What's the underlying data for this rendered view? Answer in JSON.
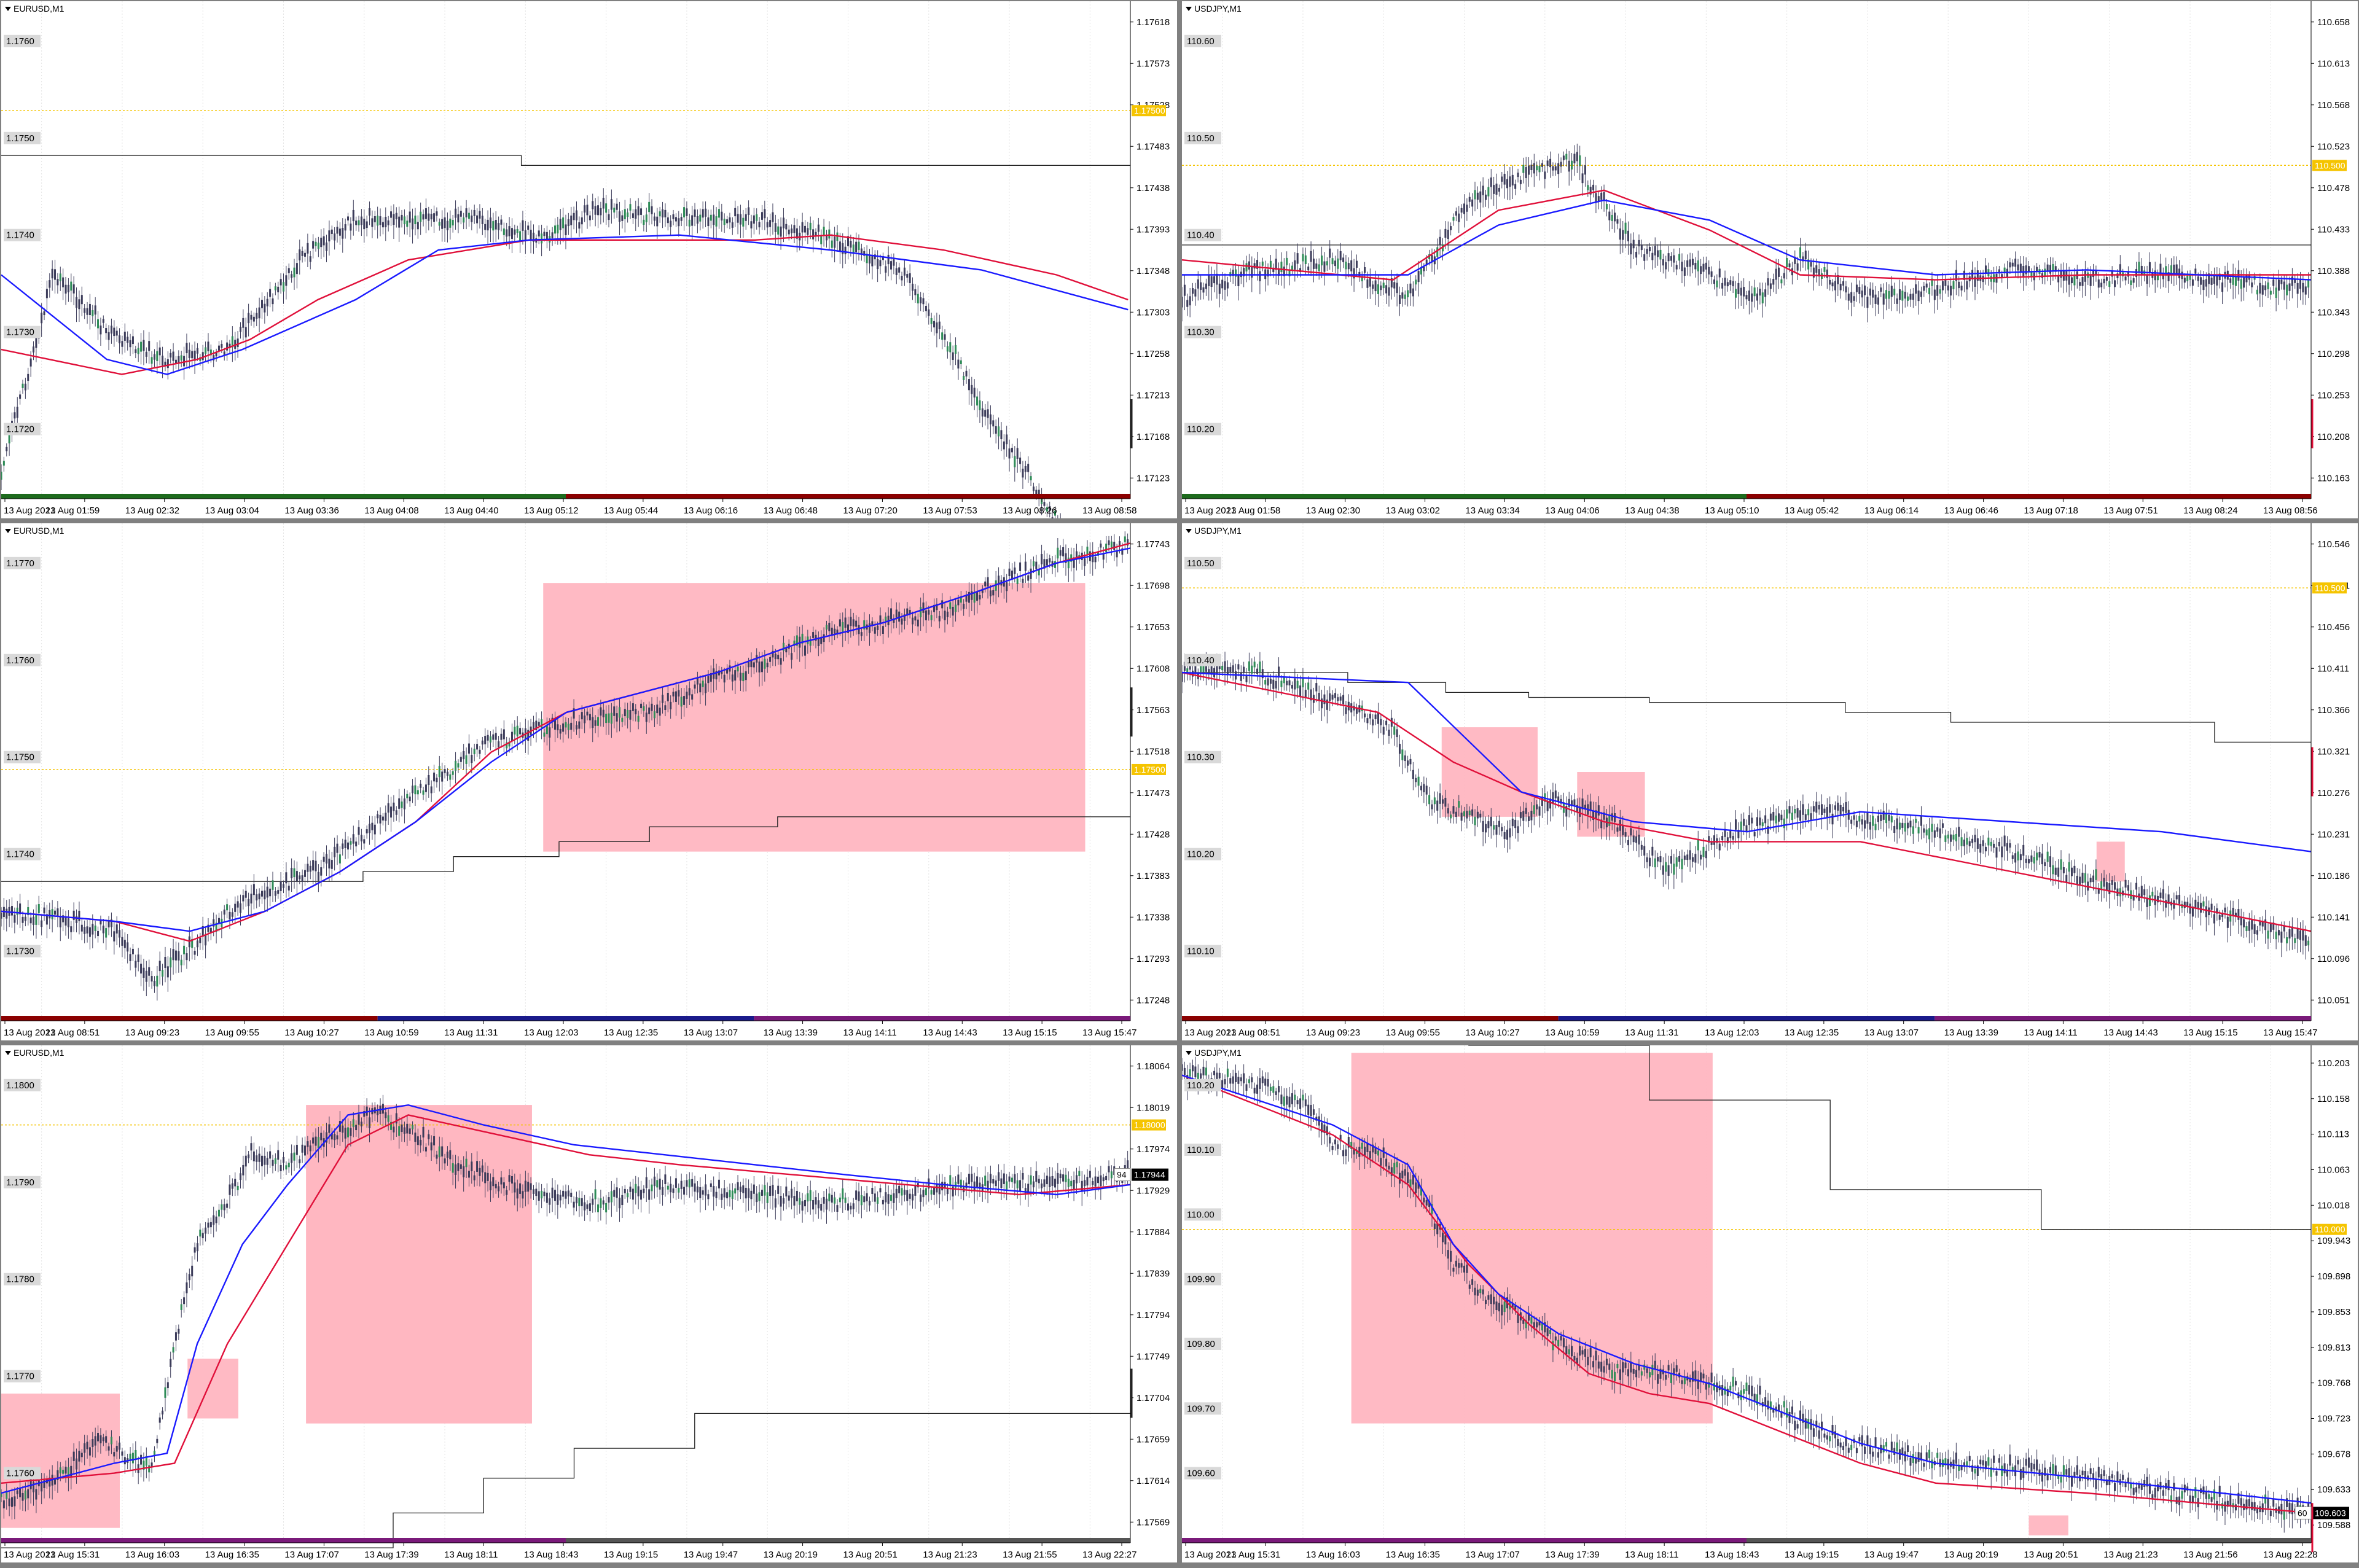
{
  "colors": {
    "background": "#ffffff",
    "grid": "#e4e4e4",
    "candle": "#3c3c5a",
    "bull": "#2e8b57",
    "ma_fast": "#1a1aff",
    "ma_slow": "#e0103a",
    "level_line": "#f5c400",
    "step_line": "#222222",
    "zone": "#ffb6c1",
    "price_label": "#000000"
  },
  "panes": [
    {
      "symbol": "EURUSD,M1",
      "times": [
        "13 Aug 2021",
        "13 Aug 01:59",
        "13 Aug 02:32",
        "13 Aug 03:04",
        "13 Aug 03:36",
        "13 Aug 04:08",
        "13 Aug 04:40",
        "13 Aug 05:12",
        "13 Aug 05:44",
        "13 Aug 06:16",
        "13 Aug 06:48",
        "13 Aug 07:20",
        "13 Aug 07:53",
        "13 Aug 08:26",
        "13 Aug 08:58"
      ],
      "right_ticks": [
        "1.17618",
        "1.17573",
        "1.17528",
        "1.17483",
        "1.17438",
        "1.17393",
        "1.17348",
        "1.17303",
        "1.17258",
        "1.17213",
        "1.17168",
        "1.17123"
      ],
      "left_labels": [
        "1.1760",
        "1.1750",
        "1.1740",
        "1.1730",
        "1.1720"
      ],
      "level_label": "1.17500",
      "price_badge": "",
      "badge_prefix": "",
      "bottom_bar": "green-red"
    },
    {
      "symbol": "USDJPY,M1",
      "times": [
        "13 Aug 2021",
        "13 Aug 01:58",
        "13 Aug 02:30",
        "13 Aug 03:02",
        "13 Aug 03:34",
        "13 Aug 04:06",
        "13 Aug 04:38",
        "13 Aug 05:10",
        "13 Aug 05:42",
        "13 Aug 06:14",
        "13 Aug 06:46",
        "13 Aug 07:18",
        "13 Aug 07:51",
        "13 Aug 08:24",
        "13 Aug 08:56"
      ],
      "right_ticks": [
        "110.658",
        "110.613",
        "110.568",
        "110.523",
        "110.478",
        "110.433",
        "110.388",
        "110.343",
        "110.298",
        "110.253",
        "110.208",
        "110.163"
      ],
      "left_labels": [
        "110.60",
        "110.50",
        "110.40",
        "110.30",
        "110.20"
      ],
      "level_label": "110.500",
      "price_badge": "",
      "badge_prefix": "",
      "bottom_bar": "green-red"
    },
    {
      "symbol": "EURUSD,M1",
      "times": [
        "13 Aug 2021",
        "13 Aug 08:51",
        "13 Aug 09:23",
        "13 Aug 09:55",
        "13 Aug 10:27",
        "13 Aug 10:59",
        "13 Aug 11:31",
        "13 Aug 12:03",
        "13 Aug 12:35",
        "13 Aug 13:07",
        "13 Aug 13:39",
        "13 Aug 14:11",
        "13 Aug 14:43",
        "13 Aug 15:15",
        "13 Aug 15:47"
      ],
      "right_ticks": [
        "1.17743",
        "1.17698",
        "1.17653",
        "1.17608",
        "1.17563",
        "1.17518",
        "1.17473",
        "1.17428",
        "1.17383",
        "1.17338",
        "1.17293",
        "1.17248"
      ],
      "left_labels": [
        "1.1770",
        "1.1760",
        "1.1750",
        "1.1740",
        "1.1730"
      ],
      "level_label": "1.17500",
      "price_badge": "",
      "badge_prefix": "",
      "bottom_bar": "red-blue-purple"
    },
    {
      "symbol": "USDJPY,M1",
      "times": [
        "13 Aug 2021",
        "13 Aug 08:51",
        "13 Aug 09:23",
        "13 Aug 09:55",
        "13 Aug 10:27",
        "13 Aug 10:59",
        "13 Aug 11:31",
        "13 Aug 12:03",
        "13 Aug 12:35",
        "13 Aug 13:07",
        "13 Aug 13:39",
        "13 Aug 14:11",
        "13 Aug 14:43",
        "13 Aug 15:15",
        "13 Aug 15:47"
      ],
      "right_ticks": [
        "110.546",
        "110.501",
        "110.456",
        "110.411",
        "110.366",
        "110.321",
        "110.276",
        "110.231",
        "110.186",
        "110.141",
        "110.096",
        "110.051"
      ],
      "left_labels": [
        "110.50",
        "110.40",
        "110.30",
        "110.20",
        "110.10"
      ],
      "level_label": "110.500",
      "price_badge": "",
      "badge_prefix": "",
      "bottom_bar": "red-blue-purple"
    },
    {
      "symbol": "EURUSD,M1",
      "times": [
        "13 Aug 2021",
        "13 Aug 15:31",
        "13 Aug 16:03",
        "13 Aug 16:35",
        "13 Aug 17:07",
        "13 Aug 17:39",
        "13 Aug 18:11",
        "13 Aug 18:43",
        "13 Aug 19:15",
        "13 Aug 19:47",
        "13 Aug 20:19",
        "13 Aug 20:51",
        "13 Aug 21:23",
        "13 Aug 21:55",
        "13 Aug 22:27"
      ],
      "right_ticks": [
        "1.18064",
        "1.18019",
        "1.17974",
        "1.17929",
        "1.17884",
        "1.17839",
        "1.17794",
        "1.17749",
        "1.17704",
        "1.17659",
        "1.17614",
        "1.17569"
      ],
      "left_labels": [
        "1.1800",
        "1.1790",
        "1.1780",
        "1.1770",
        "1.1760"
      ],
      "level_label": "1.18000",
      "price_badge": "1.17944",
      "badge_prefix": "94",
      "bottom_bar": "purple"
    },
    {
      "symbol": "USDJPY,M1",
      "times": [
        "13 Aug 2021",
        "13 Aug 15:31",
        "13 Aug 16:03",
        "13 Aug 16:35",
        "13 Aug 17:07",
        "13 Aug 17:39",
        "13 Aug 18:11",
        "13 Aug 18:43",
        "13 Aug 19:15",
        "13 Aug 19:47",
        "13 Aug 20:19",
        "13 Aug 20:51",
        "13 Aug 21:23",
        "13 Aug 21:56",
        "13 Aug 22:28"
      ],
      "right_ticks": [
        "110.203",
        "110.158",
        "110.113",
        "110.063",
        "110.018",
        "109.943",
        "109.898",
        "109.853",
        "109.813",
        "109.768",
        "109.723",
        "109.678",
        "109.633",
        "109.588"
      ],
      "left_labels": [
        "110.20",
        "110.10",
        "110.00",
        "109.90",
        "109.80",
        "109.70",
        "109.60"
      ],
      "level_label": "110.000",
      "price_badge": "109.603",
      "badge_prefix": "60",
      "bottom_bar": "purple"
    }
  ]
}
